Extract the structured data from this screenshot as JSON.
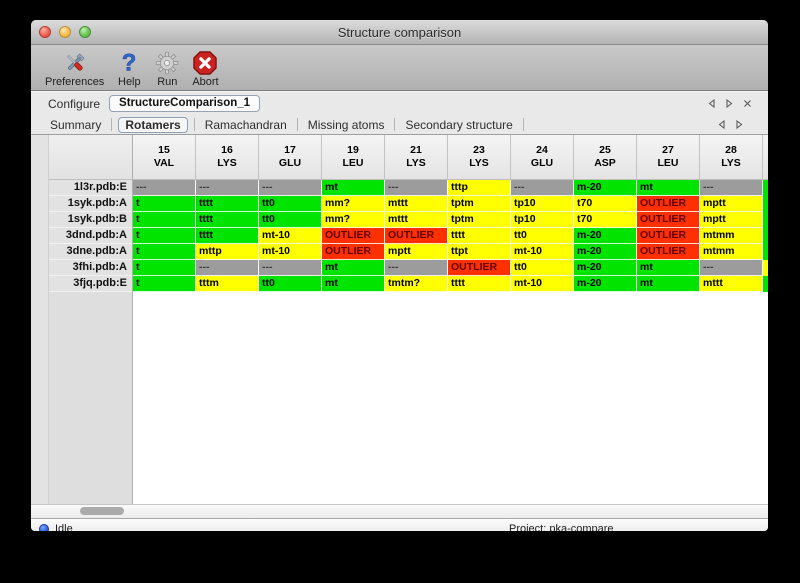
{
  "window": {
    "title": "Structure comparison"
  },
  "toolbar": {
    "items": [
      {
        "label": "Preferences",
        "icon": "tools-icon"
      },
      {
        "label": "Help",
        "icon": "question-icon"
      },
      {
        "label": "Run",
        "icon": "gear-icon"
      },
      {
        "label": "Abort",
        "icon": "stop-icon"
      }
    ]
  },
  "configure": {
    "label": "Configure",
    "value": "StructureComparison_1"
  },
  "tabs": {
    "selected": "Rotamers",
    "items": [
      {
        "label": "Summary"
      },
      {
        "label": "Rotamers"
      },
      {
        "label": "Ramachandran"
      },
      {
        "label": "Missing atoms"
      },
      {
        "label": "Secondary structure"
      }
    ]
  },
  "colors": {
    "green": "#00e400",
    "yellow": "#ffff00",
    "red": "#ff3000",
    "gray": "#9c9c9c"
  },
  "table": {
    "columns": [
      {
        "num": "15",
        "res": "VAL"
      },
      {
        "num": "16",
        "res": "LYS"
      },
      {
        "num": "17",
        "res": "GLU"
      },
      {
        "num": "19",
        "res": "LEU"
      },
      {
        "num": "21",
        "res": "LYS"
      },
      {
        "num": "23",
        "res": "LYS"
      },
      {
        "num": "24",
        "res": "GLU"
      },
      {
        "num": "25",
        "res": "ASP"
      },
      {
        "num": "27",
        "res": "LEU"
      },
      {
        "num": "28",
        "res": "LYS"
      }
    ],
    "rows": [
      {
        "label": "1l3r.pdb:E",
        "cells": [
          {
            "text": "---",
            "color": "gray"
          },
          {
            "text": "---",
            "color": "gray"
          },
          {
            "text": "---",
            "color": "gray"
          },
          {
            "text": "mt",
            "color": "green"
          },
          {
            "text": "---",
            "color": "gray"
          },
          {
            "text": "tttp",
            "color": "yellow"
          },
          {
            "text": "---",
            "color": "gray"
          },
          {
            "text": "m-20",
            "color": "green"
          },
          {
            "text": "mt",
            "color": "green"
          },
          {
            "text": "---",
            "color": "gray"
          }
        ]
      },
      {
        "label": "1syk.pdb:A",
        "cells": [
          {
            "text": "t",
            "color": "green"
          },
          {
            "text": "tttt",
            "color": "green"
          },
          {
            "text": "tt0",
            "color": "green"
          },
          {
            "text": "mm?",
            "color": "yellow"
          },
          {
            "text": "mttt",
            "color": "yellow"
          },
          {
            "text": "tptm",
            "color": "yellow"
          },
          {
            "text": "tp10",
            "color": "yellow"
          },
          {
            "text": "t70",
            "color": "yellow"
          },
          {
            "text": "OUTLIER",
            "color": "red"
          },
          {
            "text": "mptt",
            "color": "yellow"
          }
        ]
      },
      {
        "label": "1syk.pdb:B",
        "cells": [
          {
            "text": "t",
            "color": "green"
          },
          {
            "text": "tttt",
            "color": "green"
          },
          {
            "text": "tt0",
            "color": "green"
          },
          {
            "text": "mm?",
            "color": "yellow"
          },
          {
            "text": "mttt",
            "color": "yellow"
          },
          {
            "text": "tptm",
            "color": "yellow"
          },
          {
            "text": "tp10",
            "color": "yellow"
          },
          {
            "text": "t70",
            "color": "yellow"
          },
          {
            "text": "OUTLIER",
            "color": "red"
          },
          {
            "text": "mptt",
            "color": "yellow"
          }
        ]
      },
      {
        "label": "3dnd.pdb:A",
        "cells": [
          {
            "text": "t",
            "color": "green"
          },
          {
            "text": "tttt",
            "color": "green"
          },
          {
            "text": "mt-10",
            "color": "yellow"
          },
          {
            "text": "OUTLIER",
            "color": "red"
          },
          {
            "text": "OUTLIER",
            "color": "red"
          },
          {
            "text": "tttt",
            "color": "yellow"
          },
          {
            "text": "tt0",
            "color": "yellow"
          },
          {
            "text": "m-20",
            "color": "green"
          },
          {
            "text": "OUTLIER",
            "color": "red"
          },
          {
            "text": "mtmm",
            "color": "yellow"
          }
        ]
      },
      {
        "label": "3dne.pdb:A",
        "cells": [
          {
            "text": "t",
            "color": "green"
          },
          {
            "text": "mttp",
            "color": "yellow"
          },
          {
            "text": "mt-10",
            "color": "yellow"
          },
          {
            "text": "OUTLIER",
            "color": "red"
          },
          {
            "text": "mptt",
            "color": "yellow"
          },
          {
            "text": "ttpt",
            "color": "yellow"
          },
          {
            "text": "mt-10",
            "color": "yellow"
          },
          {
            "text": "m-20",
            "color": "green"
          },
          {
            "text": "OUTLIER",
            "color": "red"
          },
          {
            "text": "mtmm",
            "color": "yellow"
          }
        ]
      },
      {
        "label": "3fhi.pdb:A",
        "cells": [
          {
            "text": "t",
            "color": "green"
          },
          {
            "text": "---",
            "color": "gray"
          },
          {
            "text": "---",
            "color": "gray"
          },
          {
            "text": "mt",
            "color": "green"
          },
          {
            "text": "---",
            "color": "gray"
          },
          {
            "text": "OUTLIER",
            "color": "red"
          },
          {
            "text": "tt0",
            "color": "yellow"
          },
          {
            "text": "m-20",
            "color": "green"
          },
          {
            "text": "mt",
            "color": "green"
          },
          {
            "text": "---",
            "color": "gray"
          }
        ]
      },
      {
        "label": "3fjq.pdb:E",
        "cells": [
          {
            "text": "t",
            "color": "green"
          },
          {
            "text": "tttm",
            "color": "yellow"
          },
          {
            "text": "tt0",
            "color": "green"
          },
          {
            "text": "mt",
            "color": "green"
          },
          {
            "text": "tmtm?",
            "color": "yellow"
          },
          {
            "text": "tttt",
            "color": "yellow"
          },
          {
            "text": "mt-10",
            "color": "yellow"
          },
          {
            "text": "m-20",
            "color": "green"
          },
          {
            "text": "mt",
            "color": "green"
          },
          {
            "text": "mttt",
            "color": "yellow"
          }
        ]
      }
    ],
    "partial_column": {
      "cell_colors": [
        "green",
        "green",
        "green",
        "green",
        "green",
        "yellow",
        "green"
      ]
    }
  },
  "statusbar": {
    "status": "Idle",
    "project": "Project: pka-compare"
  }
}
